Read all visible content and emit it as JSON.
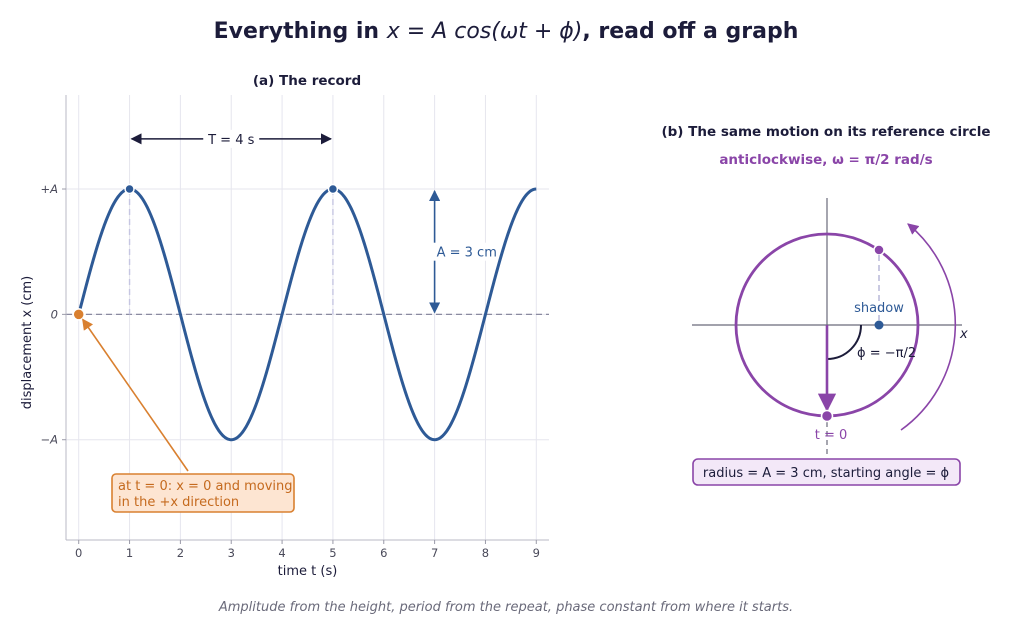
{
  "figure": {
    "title_prefix": "Everything in ",
    "title_math": "x = A cos(ωt + ϕ)",
    "title_suffix": ", read off a graph",
    "caption": "Amplitude from the height, period from the repeat, phase constant from where it starts."
  },
  "colors": {
    "curve": "#2e5a96",
    "circle": "#8a45a8",
    "annotation": "#d98030",
    "annotation_fill": "#fde5d2",
    "ink": "#1c1c3a",
    "grid": "#e6e6ee"
  },
  "panel_a": {
    "title": "(a)  The record",
    "period_label": "T = 4 s",
    "amplitude_label": "A = 3 cm",
    "start_note": [
      "at t = 0:  x = 0 and moving",
      "in the +x direction"
    ]
  },
  "panel_b": {
    "title": "(b)  The same motion on its reference circle",
    "direction_label": "anticlockwise, ω = π/2 rad/s",
    "shadow_label": "shadow",
    "phase_label": "ϕ = −π/2",
    "axis_label": "x",
    "start_label": "t = 0",
    "radius_note": "radius  = A = 3 cm,  starting angle  = ϕ"
  },
  "chart_data": [
    {
      "type": "line",
      "title": "(a)  The record",
      "xlabel": "time t (s)",
      "ylabel": "displacement x (cm)",
      "xlim": [
        -0.25,
        9.25
      ],
      "ylim": [
        -1.8,
        1.75
      ],
      "x_ticks": [
        0,
        1,
        2,
        3,
        4,
        5,
        6,
        7,
        8,
        9
      ],
      "x_tick_labels": [
        "0",
        "1",
        "2",
        "3",
        "4",
        "5",
        "6",
        "7",
        "8",
        "9"
      ],
      "y_ticks": [
        1,
        0,
        -1
      ],
      "y_tick_labels": [
        "+A",
        "0",
        "−A"
      ],
      "grid": true,
      "series": [
        {
          "function": "x(t) = A·cos(ωt + ϕ)",
          "amplitude": 3,
          "period": 4,
          "omega": "π/2",
          "phase": "−π/2",
          "t_range": [
            0,
            9
          ]
        }
      ],
      "marked_points": [
        {
          "t": 0,
          "x": 0
        },
        {
          "t": 1,
          "x": 1
        },
        {
          "t": 5,
          "x": 1
        }
      ]
    }
  ]
}
